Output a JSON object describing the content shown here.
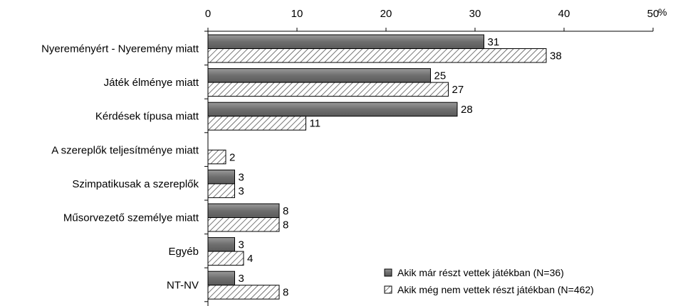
{
  "chart_data": {
    "type": "bar",
    "orientation": "horizontal",
    "categories": [
      "Nyereményért - Nyeremény miatt",
      "Játék élménye miatt",
      "Kérdések típusa miatt",
      "A szereplők teljesítménye miatt",
      "Szimpatikusak a szereplők",
      "Műsorvezető személye miatt",
      "Egyéb",
      "NT-NV"
    ],
    "series": [
      {
        "name": "Akik már részt vettek játékban (N=36)",
        "values": [
          31,
          25,
          28,
          0,
          3,
          8,
          3,
          3
        ],
        "value_labels": [
          "31",
          "25",
          "28",
          "",
          "3",
          "8",
          "3",
          "3"
        ],
        "style": "solid-gray",
        "color": "#7a7a7a"
      },
      {
        "name": "Akik még nem vettek részt játékban (N=462)",
        "values": [
          38,
          27,
          11,
          2,
          3,
          8,
          4,
          8
        ],
        "value_labels": [
          "38",
          "27",
          "11",
          "2",
          "3",
          "8",
          "4",
          "8"
        ],
        "style": "hatched",
        "color": "#555555"
      }
    ],
    "x_ticks": [
      "0",
      "10",
      "20",
      "30",
      "40",
      "50"
    ],
    "xlim": [
      0,
      50
    ],
    "x_unit": "%",
    "x_axis_position": "top",
    "grid": false,
    "legend_position": "bottom-right"
  }
}
